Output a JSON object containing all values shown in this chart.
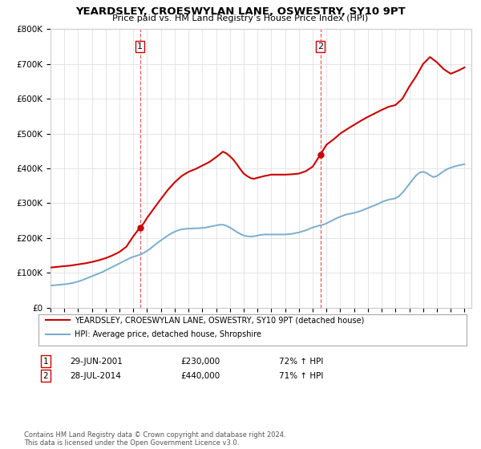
{
  "title": "YEARDSLEY, CROESWYLAN LANE, OSWESTRY, SY10 9PT",
  "subtitle": "Price paid vs. HM Land Registry’s House Price Index (HPI)",
  "ylim": [
    0,
    800000
  ],
  "yticks": [
    0,
    100000,
    200000,
    300000,
    400000,
    500000,
    600000,
    700000,
    800000
  ],
  "xlim_start": 1995.0,
  "xlim_end": 2025.5,
  "transaction1": {
    "date_num": 2001.49,
    "price": 230000,
    "label": "1",
    "date_str": "29-JUN-2001",
    "pct": "72% ↑ HPI"
  },
  "transaction2": {
    "date_num": 2014.56,
    "price": 440000,
    "label": "2",
    "date_str": "28-JUL-2014",
    "pct": "71% ↑ HPI"
  },
  "red_color": "#cc0000",
  "blue_color": "#7aadcf",
  "dashed_color": "#e06060",
  "legend_label1": "YEARDSLEY, CROESWYLAN LANE, OSWESTRY, SY10 9PT (detached house)",
  "legend_label2": "HPI: Average price, detached house, Shropshire",
  "footer": "Contains HM Land Registry data © Crown copyright and database right 2024.\nThis data is licensed under the Open Government Licence v3.0.",
  "xticks": [
    1995,
    1996,
    1997,
    1998,
    1999,
    2000,
    2001,
    2002,
    2003,
    2004,
    2005,
    2006,
    2007,
    2008,
    2009,
    2010,
    2011,
    2012,
    2013,
    2014,
    2015,
    2016,
    2017,
    2018,
    2019,
    2020,
    2021,
    2022,
    2023,
    2024,
    2025
  ],
  "hpi_x": [
    1995.0,
    1995.25,
    1995.5,
    1995.75,
    1996.0,
    1996.25,
    1996.5,
    1996.75,
    1997.0,
    1997.25,
    1997.5,
    1997.75,
    1998.0,
    1998.25,
    1998.5,
    1998.75,
    1999.0,
    1999.25,
    1999.5,
    1999.75,
    2000.0,
    2000.25,
    2000.5,
    2000.75,
    2001.0,
    2001.25,
    2001.5,
    2001.75,
    2002.0,
    2002.25,
    2002.5,
    2002.75,
    2003.0,
    2003.25,
    2003.5,
    2003.75,
    2004.0,
    2004.25,
    2004.5,
    2004.75,
    2005.0,
    2005.25,
    2005.5,
    2005.75,
    2006.0,
    2006.25,
    2006.5,
    2006.75,
    2007.0,
    2007.25,
    2007.5,
    2007.75,
    2008.0,
    2008.25,
    2008.5,
    2008.75,
    2009.0,
    2009.25,
    2009.5,
    2009.75,
    2010.0,
    2010.25,
    2010.5,
    2010.75,
    2011.0,
    2011.25,
    2011.5,
    2011.75,
    2012.0,
    2012.25,
    2012.5,
    2012.75,
    2013.0,
    2013.25,
    2013.5,
    2013.75,
    2014.0,
    2014.25,
    2014.5,
    2014.75,
    2015.0,
    2015.25,
    2015.5,
    2015.75,
    2016.0,
    2016.25,
    2016.5,
    2016.75,
    2017.0,
    2017.25,
    2017.5,
    2017.75,
    2018.0,
    2018.25,
    2018.5,
    2018.75,
    2019.0,
    2019.25,
    2019.5,
    2019.75,
    2020.0,
    2020.25,
    2020.5,
    2020.75,
    2021.0,
    2021.25,
    2021.5,
    2021.75,
    2022.0,
    2022.25,
    2022.5,
    2022.75,
    2023.0,
    2023.25,
    2023.5,
    2023.75,
    2024.0,
    2024.25,
    2024.5,
    2024.75,
    2025.0
  ],
  "hpi_y": [
    63000,
    64000,
    65000,
    66000,
    67000,
    68000,
    70000,
    72000,
    75000,
    78000,
    82000,
    86000,
    90000,
    94000,
    98000,
    102000,
    107000,
    112000,
    117000,
    122000,
    127000,
    132000,
    137000,
    142000,
    146000,
    149000,
    152000,
    157000,
    163000,
    170000,
    178000,
    186000,
    193000,
    200000,
    207000,
    213000,
    218000,
    222000,
    225000,
    226000,
    227000,
    227000,
    228000,
    228000,
    229000,
    230000,
    232000,
    234000,
    236000,
    238000,
    238000,
    235000,
    230000,
    224000,
    217000,
    212000,
    207000,
    205000,
    204000,
    205000,
    207000,
    209000,
    210000,
    210000,
    210000,
    210000,
    210000,
    210000,
    210000,
    211000,
    212000,
    214000,
    216000,
    219000,
    222000,
    226000,
    230000,
    233000,
    236000,
    238000,
    242000,
    247000,
    252000,
    257000,
    261000,
    265000,
    268000,
    270000,
    272000,
    275000,
    278000,
    282000,
    286000,
    290000,
    294000,
    298000,
    303000,
    307000,
    310000,
    312000,
    314000,
    320000,
    330000,
    342000,
    355000,
    368000,
    380000,
    388000,
    390000,
    387000,
    380000,
    375000,
    378000,
    385000,
    392000,
    398000,
    402000,
    405000,
    408000,
    410000,
    412000
  ],
  "price_x": [
    1995.0,
    1995.5,
    1996.0,
    1996.5,
    1997.0,
    1997.5,
    1998.0,
    1998.5,
    1999.0,
    1999.5,
    2000.0,
    2000.5,
    2001.0,
    2001.49,
    2001.75,
    2002.0,
    2002.5,
    2003.0,
    2003.5,
    2004.0,
    2004.5,
    2005.0,
    2005.5,
    2006.0,
    2006.5,
    2007.0,
    2007.25,
    2007.5,
    2007.75,
    2008.0,
    2008.25,
    2008.5,
    2008.75,
    2009.0,
    2009.25,
    2009.5,
    2009.75,
    2010.0,
    2010.5,
    2011.0,
    2011.5,
    2012.0,
    2012.5,
    2013.0,
    2013.5,
    2014.0,
    2014.56,
    2014.75,
    2015.0,
    2015.5,
    2016.0,
    2016.5,
    2017.0,
    2017.5,
    2018.0,
    2018.5,
    2019.0,
    2019.5,
    2020.0,
    2020.5,
    2021.0,
    2021.5,
    2022.0,
    2022.5,
    2023.0,
    2023.5,
    2024.0,
    2024.5,
    2025.0
  ],
  "price_y": [
    115000,
    117000,
    119000,
    121000,
    124000,
    127000,
    131000,
    136000,
    142000,
    150000,
    160000,
    175000,
    205000,
    230000,
    242000,
    258000,
    285000,
    312000,
    338000,
    360000,
    378000,
    390000,
    398000,
    408000,
    418000,
    432000,
    440000,
    448000,
    443000,
    435000,
    425000,
    412000,
    398000,
    385000,
    378000,
    372000,
    370000,
    373000,
    378000,
    382000,
    382000,
    382000,
    383000,
    385000,
    392000,
    405000,
    440000,
    452000,
    468000,
    483000,
    500000,
    513000,
    525000,
    537000,
    548000,
    558000,
    568000,
    577000,
    582000,
    600000,
    635000,
    665000,
    700000,
    720000,
    705000,
    685000,
    672000,
    680000,
    690000
  ]
}
